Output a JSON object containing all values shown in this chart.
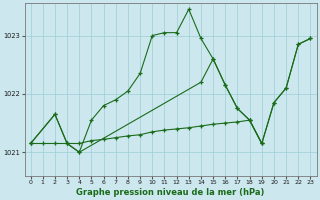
{
  "xlabel": "Graphe pression niveau de la mer (hPa)",
  "background_color": "#cce8ee",
  "grid_color": "#9ecdd6",
  "line_color": "#1a6b1a",
  "ylim": [
    1020.6,
    1023.55
  ],
  "xlim": [
    -0.5,
    23.5
  ],
  "yticks": [
    1021,
    1022,
    1023
  ],
  "xticks": [
    0,
    1,
    2,
    3,
    4,
    5,
    6,
    7,
    8,
    9,
    10,
    11,
    12,
    13,
    14,
    15,
    16,
    17,
    18,
    19,
    20,
    21,
    22,
    23
  ],
  "series": [
    {
      "x": [
        0,
        1,
        2,
        3,
        4,
        5,
        6,
        7,
        8,
        9,
        10,
        11,
        12,
        13,
        14,
        15,
        16,
        17,
        18,
        19
      ],
      "y": [
        1021.15,
        1021.15,
        1021.15,
        1021.15,
        1021.15,
        1021.2,
        1021.22,
        1021.25,
        1021.28,
        1021.3,
        1021.35,
        1021.38,
        1021.4,
        1021.42,
        1021.45,
        1021.48,
        1021.5,
        1021.52,
        1021.55,
        1021.15
      ]
    },
    {
      "x": [
        0,
        2,
        3,
        4,
        5,
        6,
        7,
        8,
        9,
        10,
        11,
        12,
        13,
        14,
        15,
        16,
        17,
        18,
        19,
        20,
        21,
        22,
        23
      ],
      "y": [
        1021.15,
        1021.65,
        1021.15,
        1021.0,
        1021.55,
        1021.8,
        1021.9,
        1022.05,
        1022.35,
        1023.0,
        1023.05,
        1023.05,
        1023.45,
        1022.95,
        1022.6,
        1022.15,
        1021.75,
        1021.55,
        1021.15,
        1021.85,
        1022.1,
        1022.85,
        1022.95
      ]
    },
    {
      "x": [
        0,
        2,
        3,
        4,
        14,
        15,
        16,
        17,
        18,
        19,
        20,
        21,
        22,
        23
      ],
      "y": [
        1021.15,
        1021.65,
        1021.15,
        1021.0,
        1022.2,
        1022.6,
        1022.15,
        1021.75,
        1021.55,
        1021.15,
        1021.85,
        1022.1,
        1022.85,
        1022.95
      ]
    }
  ]
}
